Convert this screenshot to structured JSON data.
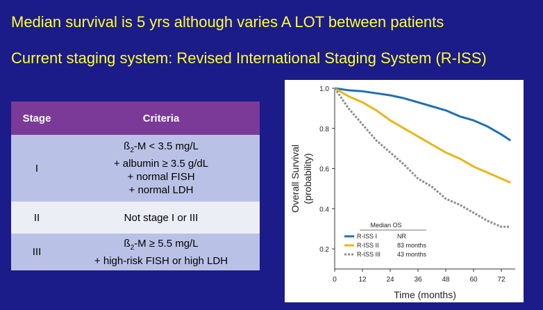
{
  "headline": {
    "line1": "Median survival is 5 yrs although varies A LOT between patients",
    "line2": "Current staging system: Revised International Staging System (R-ISS)"
  },
  "table": {
    "headers": [
      "Stage",
      "Criteria"
    ],
    "rows": [
      {
        "stage": "I",
        "criteria": [
          "ß2-M < 3.5 mg/L",
          "+ albumin ≥ 3.5 g/dL",
          "+ normal FISH",
          "+ normal LDH"
        ]
      },
      {
        "stage": "II",
        "criteria": [
          "Not stage I or III"
        ]
      },
      {
        "stage": "III",
        "criteria": [
          "ß2-M ≥ 5.5 mg/L",
          "+ high-risk FISH or high LDH"
        ]
      }
    ]
  },
  "chart_data": {
    "type": "line",
    "title": "",
    "xlabel": "Time (months)",
    "ylabel": "Overall Survival (probability)",
    "xlim": [
      0,
      78
    ],
    "ylim": [
      0.1,
      1.0
    ],
    "xticks": [
      0,
      12,
      24,
      36,
      48,
      60,
      72
    ],
    "yticks": [
      0.2,
      0.4,
      0.6,
      0.8,
      1.0
    ],
    "legend_title": "Median OS",
    "legend_position": "bottom-left",
    "series": [
      {
        "name": "R-ISS I",
        "median": "NR",
        "color": "#1f6fb5",
        "dash": "solid",
        "x": [
          0,
          6,
          12,
          18,
          24,
          30,
          36,
          42,
          48,
          54,
          60,
          66,
          72,
          76
        ],
        "y": [
          1.0,
          0.99,
          0.985,
          0.975,
          0.965,
          0.95,
          0.93,
          0.91,
          0.89,
          0.86,
          0.84,
          0.81,
          0.77,
          0.74
        ]
      },
      {
        "name": "R-ISS II",
        "median": "83 months",
        "color": "#e8b619",
        "dash": "solid",
        "x": [
          0,
          6,
          12,
          18,
          24,
          30,
          36,
          42,
          48,
          54,
          60,
          66,
          72,
          76
        ],
        "y": [
          1.0,
          0.96,
          0.93,
          0.89,
          0.84,
          0.8,
          0.76,
          0.72,
          0.68,
          0.65,
          0.61,
          0.58,
          0.55,
          0.53
        ]
      },
      {
        "name": "R-ISS III",
        "median": "43 months",
        "color": "#8c8c8c",
        "dash": "dotted",
        "x": [
          0,
          6,
          12,
          18,
          24,
          30,
          36,
          42,
          48,
          54,
          60,
          66,
          72,
          76
        ],
        "y": [
          1.0,
          0.9,
          0.82,
          0.74,
          0.68,
          0.62,
          0.55,
          0.51,
          0.45,
          0.42,
          0.38,
          0.34,
          0.31,
          0.31
        ]
      }
    ]
  }
}
